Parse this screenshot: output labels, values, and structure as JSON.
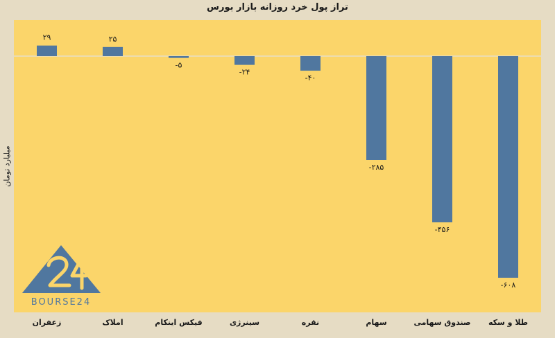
{
  "chart_data": {
    "type": "bar",
    "title": "تراز پول خرد روزانه بازار بورس",
    "ylabel": "میلیارد تومان",
    "categories": [
      "زعفران",
      "املاک",
      "فیکس اینکام",
      "سینرژی",
      "نقره",
      "سهام",
      "صندوق سهامی",
      "طلا و سکه"
    ],
    "values": [
      29,
      25,
      -5,
      -24,
      -40,
      -285,
      -456,
      -608
    ],
    "value_labels": [
      "۲۹",
      "۲۵",
      "-۵",
      "-۲۴",
      "-۴۰",
      "-۲۸۵",
      "-۴۵۶",
      "-۶۰۸"
    ],
    "ylim": [
      -660,
      90
    ],
    "grid": false,
    "legend": "none"
  },
  "watermark": {
    "text": "BOURSE24",
    "logo": "24"
  },
  "colors": {
    "plot_bg": "#fbd56a",
    "bar": "#50779f",
    "page_bg": "#e6dcc4",
    "zero_line": "#e8e0c8"
  }
}
